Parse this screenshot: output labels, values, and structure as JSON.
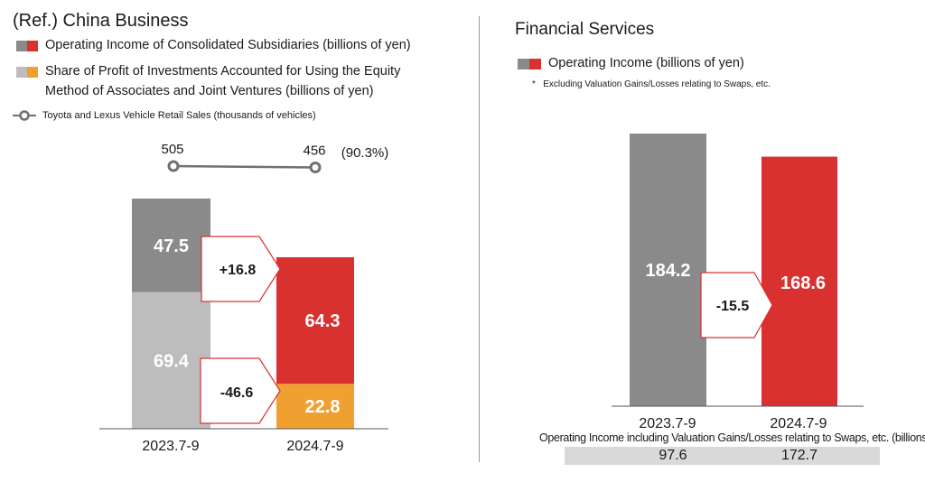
{
  "left": {
    "title": "(Ref.) China Business",
    "legend": [
      {
        "label": "Operating Income of Consolidated Subsidiaries (billions of yen)"
      },
      {
        "label": "Share of Profit of Investments Accounted for Using the Equity",
        "label2": "Method of Associates and Joint Ventures (billions of yen)"
      },
      {
        "label": "Toyota and Lexus Vehicle Retail Sales (thousands of vehicles)"
      }
    ],
    "pct_note": "(90.3%)"
  },
  "right": {
    "title": "Financial Services",
    "legend_label": "Operating Income (billions of yen)",
    "note_bullet": "*",
    "note": "Excluding Valuation Gains/Losses relating to Swaps, etc.",
    "bottom_label": "Operating Income including Valuation Gains/Losses relating to Swaps, etc.  (billions of yen)",
    "bottom_values": [
      "97.6",
      "172.7"
    ]
  },
  "colors": {
    "dark_gray": "#8a8a8a",
    "light_gray": "#bdbdbd",
    "red": "#d8312f",
    "orange": "#f0a030",
    "marker": "#707070"
  },
  "chart_data": [
    {
      "type": "bar",
      "title": "(Ref.) China Business",
      "stacked": true,
      "categories": [
        "2023.7-9",
        "2024.7-9"
      ],
      "series": [
        {
          "name": "Share of Profit of Investments Accounted for Using the Equity Method of Associates and Joint Ventures (billions of yen)",
          "values": [
            69.4,
            22.8
          ]
        },
        {
          "name": "Operating Income of Consolidated Subsidiaries (billions of yen)",
          "values": [
            47.5,
            64.3
          ]
        }
      ],
      "changes": [
        {
          "series": "Operating Income of Consolidated Subsidiaries (billions of yen)",
          "label": "+16.8"
        },
        {
          "series": "Share of Profit of Investments Accounted for Using the Equity Method of Associates and Joint Ventures (billions of yen)",
          "label": "-46.6"
        }
      ],
      "line_series": {
        "name": "Toyota and Lexus Vehicle Retail Sales (thousands of vehicles)",
        "values": [
          505,
          456
        ]
      },
      "ylim": [
        0,
        120
      ]
    },
    {
      "type": "bar",
      "title": "Financial Services",
      "categories": [
        "2023.7-9",
        "2024.7-9"
      ],
      "series": [
        {
          "name": "Operating Income (billions of yen)",
          "values": [
            184.2,
            168.6
          ]
        }
      ],
      "change_label": "-15.5",
      "ylim": [
        0,
        190
      ]
    }
  ]
}
